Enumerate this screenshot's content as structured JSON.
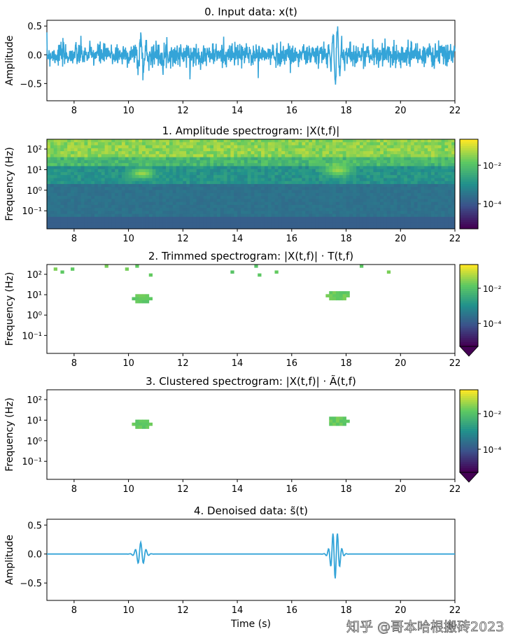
{
  "chart_data": [
    {
      "type": "line",
      "title": "0. Input data: x(t)",
      "ylabel": "Amplitude",
      "xlim": [
        7,
        22
      ],
      "ylim": [
        -0.8,
        0.6
      ],
      "yticks": [
        "0.5",
        "0.0",
        "−0.5"
      ],
      "yvals": [
        0.5,
        0,
        -0.5
      ],
      "xticks": [
        "8",
        "10",
        "12",
        "14",
        "16",
        "18",
        "20",
        "22"
      ],
      "color": "#34a4d8",
      "description_series": "noisy signal with bursts near t=10.5 and t=17.6"
    },
    {
      "type": "heatmap",
      "title": "1. Amplitude spectrogram: |X(t,f)|",
      "ylabel": "Frequency (Hz)",
      "yticks": [
        "10²",
        "10¹",
        "10⁰",
        "10⁻¹"
      ],
      "xticks": [
        "8",
        "10",
        "12",
        "14",
        "16",
        "18",
        "20",
        "22"
      ],
      "colorbar_ticks": [
        "10⁻²",
        "10⁻⁴"
      ]
    },
    {
      "type": "heatmap",
      "title": "2. Trimmed  spectrogram: |X(t,f)| · T(t,f)",
      "ylabel": "Frequency (Hz)",
      "yticks": [
        "10²",
        "10¹",
        "10⁰",
        "10⁻¹"
      ],
      "xticks": [
        "8",
        "10",
        "12",
        "14",
        "16",
        "18",
        "20",
        "22"
      ],
      "colorbar_ticks": [
        "10⁻²",
        "10⁻⁴"
      ]
    },
    {
      "type": "heatmap",
      "title": "3. Clustered  spectrogram: |X(t,f)| · Ã(t,f)",
      "ylabel": "Frequency (Hz)",
      "yticks": [
        "10²",
        "10¹",
        "10⁰",
        "10⁻¹"
      ],
      "xticks": [
        "8",
        "10",
        "12",
        "14",
        "16",
        "18",
        "20",
        "22"
      ],
      "colorbar_ticks": [
        "10⁻²",
        "10⁻⁴"
      ]
    },
    {
      "type": "line",
      "title": "4. Denoised data: s̃(t)",
      "ylabel": "Amplitude",
      "xlabel": "Time (s)",
      "xlim": [
        7,
        22
      ],
      "ylim": [
        -0.8,
        0.6
      ],
      "yticks": [
        "0.5",
        "0.0",
        "−0.5"
      ],
      "yvals": [
        0.5,
        0,
        -0.5
      ],
      "xticks": [
        "8",
        "10",
        "12",
        "14",
        "16",
        "18",
        "20",
        "22"
      ],
      "color": "#34a4d8",
      "bursts": [
        {
          "t": 10.5,
          "amp": 0.2
        },
        {
          "t": 17.6,
          "amp": 0.45
        }
      ]
    }
  ],
  "watermark": "知乎 @哥本哈根搬砖2023"
}
